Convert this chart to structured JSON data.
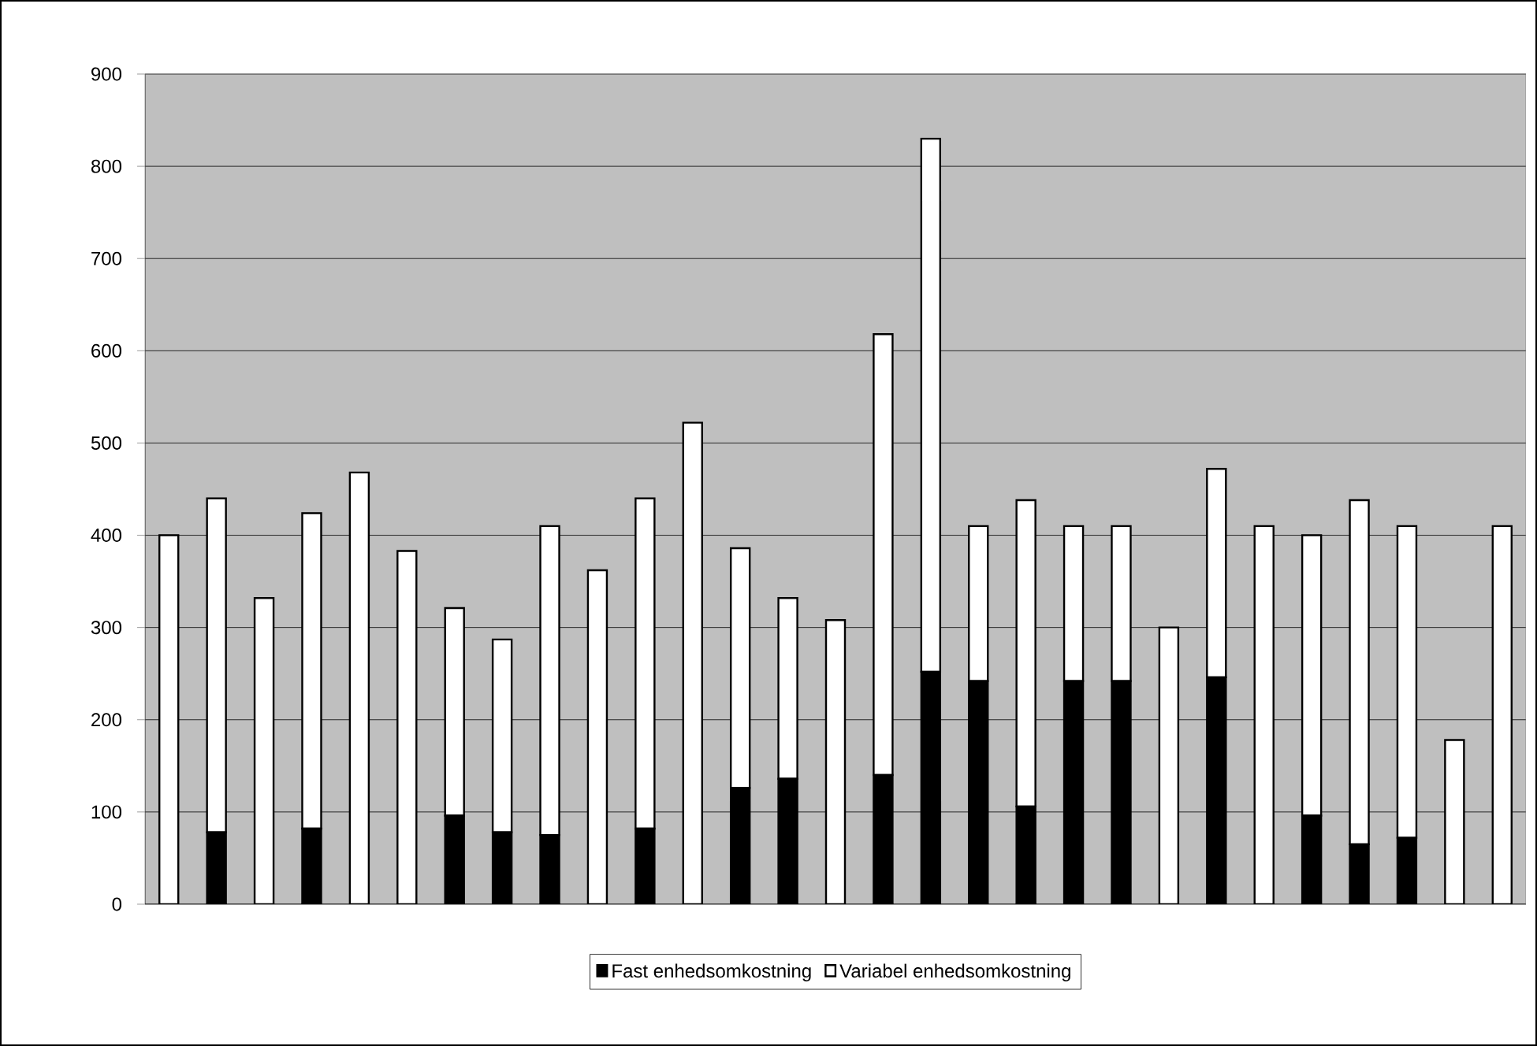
{
  "chart_data": {
    "type": "bar",
    "stacked": true,
    "categories": [
      null,
      null,
      null,
      null,
      null,
      null,
      null,
      null,
      null,
      null,
      null,
      null,
      null,
      null,
      null,
      null,
      null,
      null,
      null,
      null,
      null,
      null,
      null,
      null,
      null,
      null,
      null,
      null,
      null
    ],
    "series": [
      {
        "name": "Fast enhedsomkostning",
        "color": "#000000",
        "values": [
          0,
          78,
          0,
          82,
          0,
          0,
          96,
          78,
          75,
          0,
          82,
          0,
          126,
          136,
          0,
          140,
          252,
          242,
          106,
          242,
          242,
          0,
          246,
          0,
          96,
          65,
          72,
          0,
          0
        ]
      },
      {
        "name": "Variabel enhedsomkostning",
        "color": "#ffffff",
        "values": [
          400,
          362,
          332,
          342,
          468,
          383,
          225,
          209,
          335,
          362,
          358,
          522,
          260,
          196,
          308,
          478,
          578,
          168,
          332,
          168,
          168,
          300,
          226,
          410,
          304,
          373,
          338,
          178,
          410
        ]
      }
    ],
    "ylim": [
      0,
      900
    ],
    "yticks": [
      0,
      100,
      200,
      300,
      400,
      500,
      600,
      700,
      800,
      900
    ],
    "grid": "y",
    "legend": "bottom"
  }
}
